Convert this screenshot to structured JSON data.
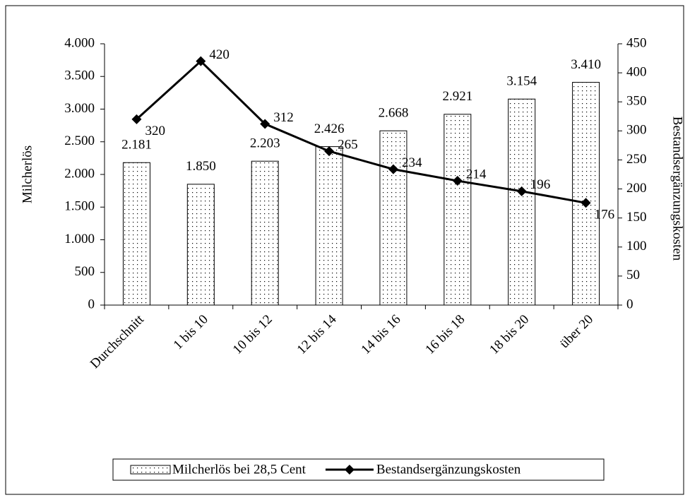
{
  "chart_data": {
    "type": "combo",
    "categories": [
      "Durchschnitt",
      "1 bis 10",
      "10 bis 12",
      "12 bis 14",
      "14 bis 16",
      "16 bis 18",
      "18 bis 20",
      "über 20"
    ],
    "series": [
      {
        "name": "Milcherlös bei 28,5 Cent",
        "type": "bar",
        "color": "#000000",
        "axis": "y",
        "values": [
          2181,
          1850,
          2203,
          2426,
          2668,
          2921,
          3154,
          3410
        ],
        "value_labels": [
          "2.181",
          "1.850",
          "2.203",
          "2.426",
          "2.668",
          "2.921",
          "3.154",
          "3.410"
        ]
      },
      {
        "name": "Bestandsergänzungskosten",
        "type": "line",
        "color": "#000000",
        "axis": "y2",
        "values": [
          320,
          420,
          312,
          265,
          234,
          214,
          196,
          176
        ]
      }
    ],
    "ylabel": "Milcherlös",
    "y2label": "Bestandsergänzungskosten",
    "ylim": [
      0,
      4000
    ],
    "yticks": [
      0,
      500,
      {
        "value": 1000,
        "label": "1.000"
      },
      {
        "value": 1500,
        "label": "1.500"
      },
      {
        "value": 2000,
        "label": "2.000"
      },
      {
        "value": 2500,
        "label": "2.500"
      },
      {
        "value": 3000,
        "label": "3.000"
      },
      {
        "value": 3500,
        "label": "3.500"
      },
      {
        "value": 4000,
        "label": "4.000"
      }
    ],
    "y2lim": [
      0,
      450
    ],
    "y2ticks": [
      0,
      50,
      100,
      150,
      200,
      250,
      300,
      350,
      400,
      450
    ],
    "grid": false,
    "legend": "bottom"
  }
}
